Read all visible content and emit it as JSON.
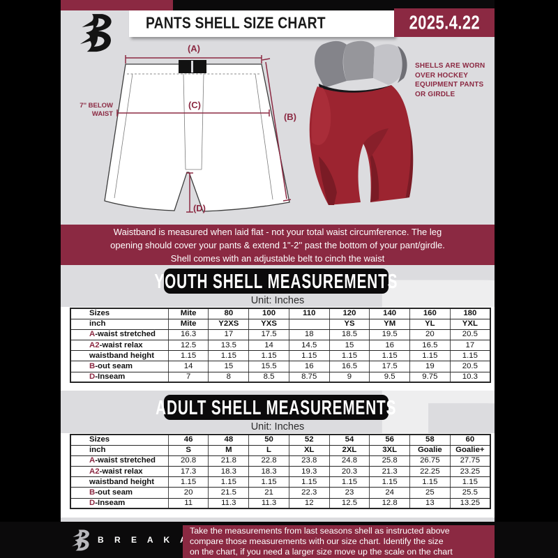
{
  "header": {
    "title": "PANTS SHELL SIZE CHART",
    "date": "2025.4.22"
  },
  "diagram": {
    "label_a": "(A)",
    "label_b": "(B)",
    "label_c": "(C)",
    "label_d": "(D)",
    "waist_note": "7'' BELOW\nWAIST"
  },
  "pants": {
    "note": "SHELLS ARE WORN\nOVER HOCKEY\nEQUIPMENT PANTS\nOR GIRDLE"
  },
  "notice": {
    "text": "Waistband is measured when laid flat - not your total waist circumference. The leg\nopening should cover your pants & extend 1''-2'' past the bottom of your pant/girdle.\nShell comes with an adjustable belt to cinch the waist"
  },
  "youth": {
    "banner": "YOUTH SHELL MEASUREMENTS",
    "unit": "Unit: Inches",
    "table": {
      "rows": [
        {
          "prefix": "",
          "label": "Sizes",
          "header": true,
          "values": [
            "Mite",
            "80",
            "100",
            "110",
            "120",
            "140",
            "160",
            "180"
          ]
        },
        {
          "prefix": "",
          "label": "inch",
          "header": true,
          "values": [
            "Mite",
            "Y2XS",
            "YXS",
            "",
            "YS",
            "YM",
            "YL",
            "YXL"
          ]
        },
        {
          "prefix": "A",
          "label": "-waist stretched",
          "header": false,
          "values": [
            "16.3",
            "17",
            "17.5",
            "18",
            "18.5",
            "19.5",
            "20",
            "20.5"
          ]
        },
        {
          "prefix": "A2",
          "label": "-waist relax",
          "header": false,
          "values": [
            "12.5",
            "13.5",
            "14",
            "14.5",
            "15",
            "16",
            "16.5",
            "17"
          ]
        },
        {
          "prefix": "",
          "label": "waistband height",
          "header": false,
          "values": [
            "1.15",
            "1.15",
            "1.15",
            "1.15",
            "1.15",
            "1.15",
            "1.15",
            "1.15"
          ]
        },
        {
          "prefix": "B",
          "label": "-out seam",
          "header": false,
          "values": [
            "14",
            "15",
            "15.5",
            "16",
            "16.5",
            "17.5",
            "19",
            "20.5"
          ]
        },
        {
          "prefix": "D",
          "label": "-Inseam",
          "header": false,
          "values": [
            "7",
            "8",
            "8.5",
            "8.75",
            "9",
            "9.5",
            "9.75",
            "10.3"
          ]
        }
      ]
    }
  },
  "adult": {
    "banner": "ADULT SHELL MEASUREMENTS",
    "unit": "Unit: Inches",
    "table": {
      "rows": [
        {
          "prefix": "",
          "label": "Sizes",
          "header": true,
          "values": [
            "46",
            "48",
            "50",
            "52",
            "54",
            "56",
            "58",
            "60"
          ]
        },
        {
          "prefix": "",
          "label": "inch",
          "header": true,
          "values": [
            "S",
            "M",
            "L",
            "XL",
            "2XL",
            "3XL",
            "Goalie",
            "Goalie+"
          ]
        },
        {
          "prefix": "A",
          "label": "-waist stretched",
          "header": false,
          "values": [
            "20.8",
            "21.8",
            "22.8",
            "23.8",
            "24.8",
            "25.8",
            "26.75",
            "27.75"
          ]
        },
        {
          "prefix": "A2",
          "label": "-waist relax",
          "header": false,
          "values": [
            "17.3",
            "18.3",
            "18.3",
            "19.3",
            "20.3",
            "21.3",
            "22.25",
            "23.25"
          ]
        },
        {
          "prefix": "",
          "label": "waistband height",
          "header": false,
          "values": [
            "1.15",
            "1.15",
            "1.15",
            "1.15",
            "1.15",
            "1.15",
            "1.15",
            "1.15"
          ]
        },
        {
          "prefix": "B",
          "label": "-out seam",
          "header": false,
          "values": [
            "20",
            "21.5",
            "21",
            "22.3",
            "23",
            "24",
            "25",
            "25.5"
          ]
        },
        {
          "prefix": "D",
          "label": "-Inseam",
          "header": false,
          "values": [
            "11",
            "11.3",
            "11.3",
            "12",
            "12.5",
            "12.8",
            "13",
            "13.25"
          ]
        }
      ]
    }
  },
  "footer": {
    "brand": "B R E A K A W A Y",
    "note": "Take the measurements from last seasons shell as instructed above\ncompare those measurements  with our size chart. Identify the size\non the chart, if you need a larger size move up the scale on the chart"
  },
  "watermark": {
    "letter": "B"
  },
  "colors": {
    "maroon": "#8b2942",
    "background_gray": "#dcdcdf",
    "banner_black": "#0b0a0b",
    "shell_red": "#9c2430"
  }
}
